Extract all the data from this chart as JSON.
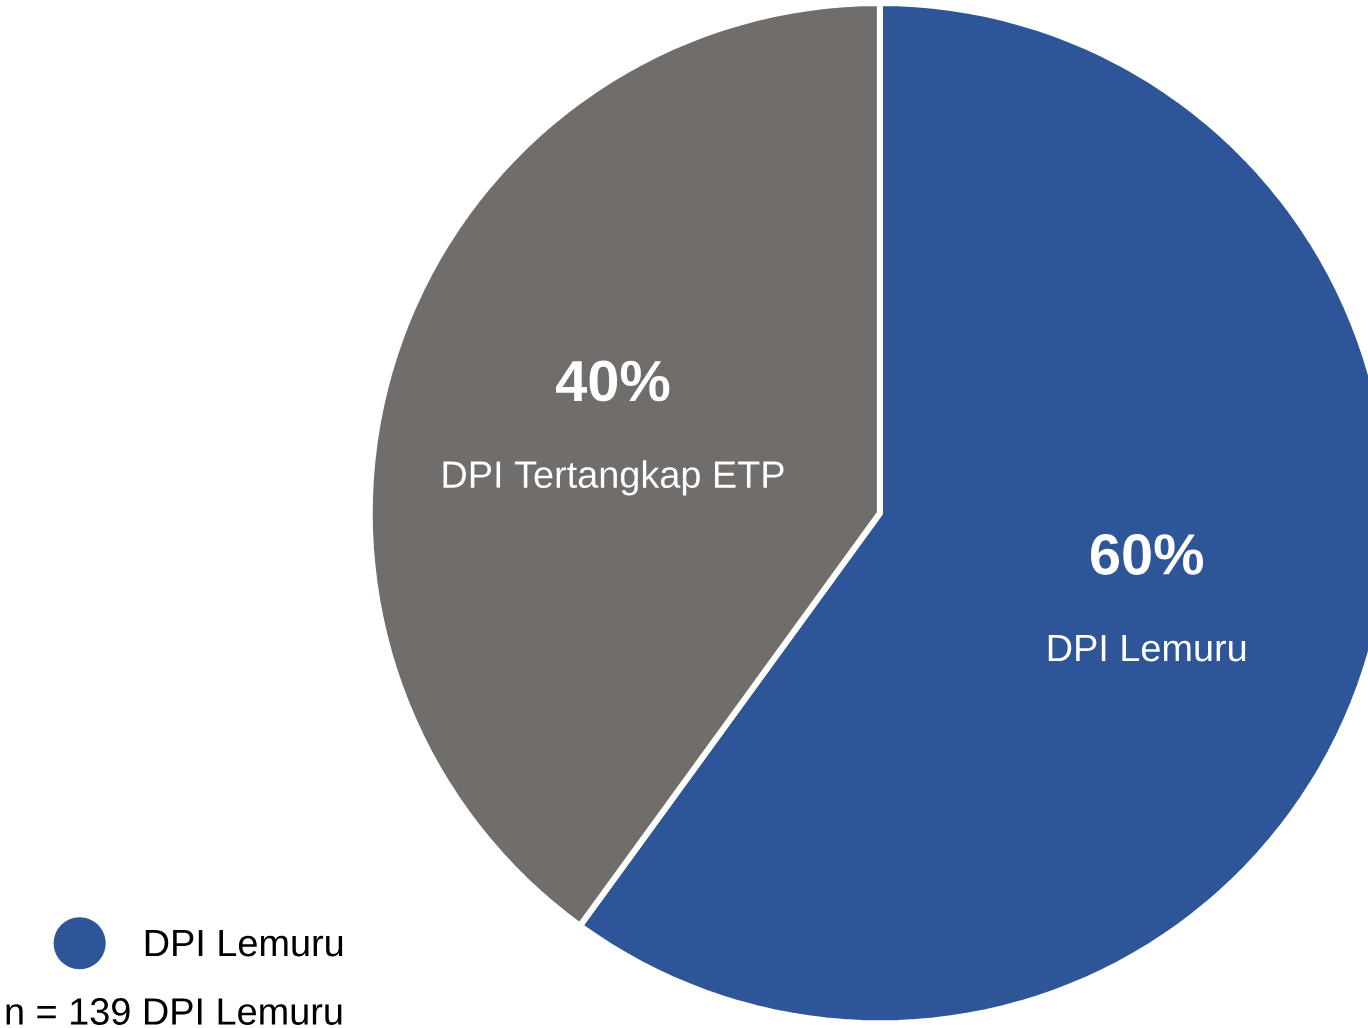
{
  "chart_data": {
    "type": "pie",
    "categories": [
      "DPI Lemuru",
      "DPI Tertangkap ETP"
    ],
    "values": [
      60,
      40
    ],
    "colors": [
      "#2e5597",
      "#716d6b"
    ],
    "value_labels": [
      "60%",
      "40%"
    ],
    "legend": "bottom left",
    "annotations": [
      "n = 139 DPI Lemuru"
    ]
  }
}
